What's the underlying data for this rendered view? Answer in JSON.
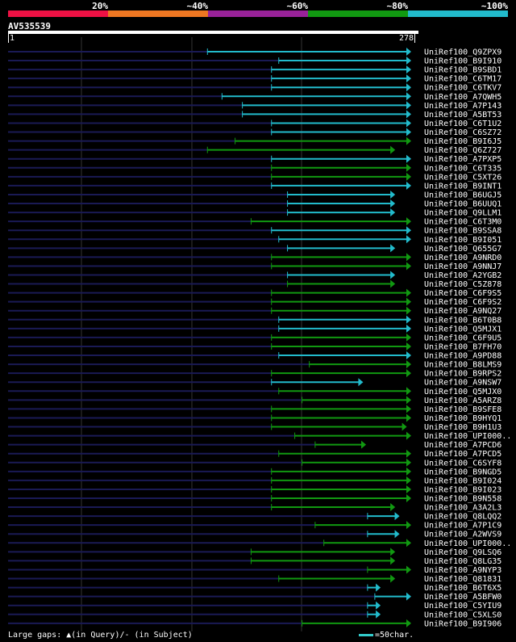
{
  "query": {
    "name": "AV535539",
    "start": "1",
    "end": "278"
  },
  "legend": [
    {
      "label": "20%",
      "color": "#ee1144"
    },
    {
      "label": "~40%",
      "color": "#ee7722"
    },
    {
      "label": "~60%",
      "color": "#992299"
    },
    {
      "label": "~80%",
      "color": "#119911"
    },
    {
      "label": "~100%",
      "color": "#22bbcc"
    }
  ],
  "footer": {
    "gaps_text": "Large gaps: ▲(in Query)/- (in Subject)",
    "scale_text": "=50char."
  },
  "chart_data": {
    "type": "alignment",
    "query_length": 278,
    "colors": {
      "green": "#119911",
      "cyan": "#22bbcc"
    },
    "hits": [
      {
        "name": "UniRef100_Q9ZPX9",
        "start": 138,
        "end": 278,
        "color": "cyan"
      },
      {
        "name": "UniRef100_B9I910",
        "start": 187,
        "end": 278,
        "color": "cyan"
      },
      {
        "name": "UniRef100_B9SBD1",
        "start": 182,
        "end": 278,
        "color": "cyan"
      },
      {
        "name": "UniRef100_C6TM17",
        "start": 182,
        "end": 278,
        "color": "cyan"
      },
      {
        "name": "UniRef100_C6TKV7",
        "start": 182,
        "end": 278,
        "color": "cyan"
      },
      {
        "name": "UniRef100_A7QWH5",
        "start": 148,
        "end": 278,
        "color": "cyan"
      },
      {
        "name": "UniRef100_A7P143",
        "start": 162,
        "end": 278,
        "color": "cyan"
      },
      {
        "name": "UniRef100_A5BT53",
        "start": 162,
        "end": 278,
        "color": "cyan"
      },
      {
        "name": "UniRef100_C6T1U2",
        "start": 182,
        "end": 278,
        "color": "cyan"
      },
      {
        "name": "UniRef100_C6SZ72",
        "start": 182,
        "end": 278,
        "color": "cyan"
      },
      {
        "name": "UniRef100_B9I6J5",
        "start": 157,
        "end": 278,
        "color": "green"
      },
      {
        "name": "UniRef100_Q6Z727",
        "start": 138,
        "end": 267,
        "color": "green"
      },
      {
        "name": "UniRef100_A7PXP5",
        "start": 182,
        "end": 278,
        "color": "cyan"
      },
      {
        "name": "UniRef100_C6T335",
        "start": 182,
        "end": 278,
        "color": "green"
      },
      {
        "name": "UniRef100_C5XT26",
        "start": 182,
        "end": 278,
        "color": "green"
      },
      {
        "name": "UniRef100_B9INT1",
        "start": 182,
        "end": 278,
        "color": "cyan"
      },
      {
        "name": "UniRef100_B6UGJ5",
        "start": 193,
        "end": 267,
        "color": "cyan"
      },
      {
        "name": "UniRef100_B6UUQ1",
        "start": 193,
        "end": 267,
        "color": "cyan"
      },
      {
        "name": "UniRef100_Q9LLM1",
        "start": 193,
        "end": 267,
        "color": "cyan"
      },
      {
        "name": "UniRef100_C6T3M0",
        "start": 168,
        "end": 278,
        "color": "green"
      },
      {
        "name": "UniRef100_B9SSA8",
        "start": 182,
        "end": 278,
        "color": "cyan"
      },
      {
        "name": "UniRef100_B9I051",
        "start": 187,
        "end": 278,
        "color": "cyan"
      },
      {
        "name": "UniRef100_Q655G7",
        "start": 193,
        "end": 267,
        "color": "cyan"
      },
      {
        "name": "UniRef100_A9NRD0",
        "start": 182,
        "end": 278,
        "color": "green"
      },
      {
        "name": "UniRef100_A9NNJ7",
        "start": 182,
        "end": 278,
        "color": "green"
      },
      {
        "name": "UniRef100_A2YGB2",
        "start": 193,
        "end": 267,
        "color": "cyan"
      },
      {
        "name": "UniRef100_C5Z878",
        "start": 193,
        "end": 267,
        "color": "green"
      },
      {
        "name": "UniRef100_C6F9S5",
        "start": 182,
        "end": 278,
        "color": "green"
      },
      {
        "name": "UniRef100_C6F9S2",
        "start": 182,
        "end": 278,
        "color": "green"
      },
      {
        "name": "UniRef100_A9NQ27",
        "start": 182,
        "end": 278,
        "color": "green"
      },
      {
        "name": "UniRef100_B6T0B8",
        "start": 187,
        "end": 278,
        "color": "cyan"
      },
      {
        "name": "UniRef100_Q5MJX1",
        "start": 187,
        "end": 278,
        "color": "cyan"
      },
      {
        "name": "UniRef100_C6F9U5",
        "start": 182,
        "end": 278,
        "color": "green"
      },
      {
        "name": "UniRef100_B7FH70",
        "start": 182,
        "end": 278,
        "color": "green"
      },
      {
        "name": "UniRef100_A9PD88",
        "start": 187,
        "end": 278,
        "color": "cyan"
      },
      {
        "name": "UniRef100_B8LMS9",
        "start": 208,
        "end": 278,
        "color": "green"
      },
      {
        "name": "UniRef100_B9RPS2",
        "start": 182,
        "end": 278,
        "color": "green"
      },
      {
        "name": "UniRef100_A9NSW7",
        "start": 182,
        "end": 245,
        "color": "cyan"
      },
      {
        "name": "UniRef100_Q5MJX0",
        "start": 187,
        "end": 278,
        "color": "green"
      },
      {
        "name": "UniRef100_A5ARZ8",
        "start": 203,
        "end": 278,
        "color": "green"
      },
      {
        "name": "UniRef100_B9SFE8",
        "start": 182,
        "end": 278,
        "color": "green"
      },
      {
        "name": "UniRef100_B9HYQ1",
        "start": 182,
        "end": 278,
        "color": "green"
      },
      {
        "name": "UniRef100_B9H1U3",
        "start": 182,
        "end": 275,
        "color": "green"
      },
      {
        "name": "UniRef100_UPI000..",
        "start": 198,
        "end": 278,
        "color": "green"
      },
      {
        "name": "UniRef100_A7PCD6",
        "start": 212,
        "end": 247,
        "color": "green"
      },
      {
        "name": "UniRef100_A7PCD5",
        "start": 187,
        "end": 278,
        "color": "green"
      },
      {
        "name": "UniRef100_C6SYF8",
        "start": 203,
        "end": 278,
        "color": "green"
      },
      {
        "name": "UniRef100_B9NGD5",
        "start": 182,
        "end": 278,
        "color": "green"
      },
      {
        "name": "UniRef100_B9I024",
        "start": 182,
        "end": 278,
        "color": "green"
      },
      {
        "name": "UniRef100_B9I023",
        "start": 182,
        "end": 278,
        "color": "green"
      },
      {
        "name": "UniRef100_B9N558",
        "start": 182,
        "end": 278,
        "color": "green"
      },
      {
        "name": "UniRef100_A3A2L3",
        "start": 182,
        "end": 267,
        "color": "green"
      },
      {
        "name": "UniRef100_Q8LQQ2",
        "start": 248,
        "end": 270,
        "color": "cyan"
      },
      {
        "name": "UniRef100_A7P1C9",
        "start": 212,
        "end": 278,
        "color": "green"
      },
      {
        "name": "UniRef100_A2WVS9",
        "start": 248,
        "end": 270,
        "color": "cyan"
      },
      {
        "name": "UniRef100_UPI000..",
        "start": 218,
        "end": 278,
        "color": "green"
      },
      {
        "name": "UniRef100_Q9LSQ6",
        "start": 168,
        "end": 267,
        "color": "green"
      },
      {
        "name": "UniRef100_Q8LG35",
        "start": 168,
        "end": 267,
        "color": "green"
      },
      {
        "name": "UniRef100_A9NYP3",
        "start": 248,
        "end": 278,
        "color": "green"
      },
      {
        "name": "UniRef100_Q81831",
        "start": 187,
        "end": 267,
        "color": "green"
      },
      {
        "name": "UniRef100_B6T6X5",
        "start": 248,
        "end": 257,
        "color": "cyan"
      },
      {
        "name": "UniRef100_A5BFW0",
        "start": 253,
        "end": 278,
        "color": "cyan"
      },
      {
        "name": "UniRef100_C5YIU9",
        "start": 248,
        "end": 257,
        "color": "cyan"
      },
      {
        "name": "UniRef100_C5XLS0",
        "start": 248,
        "end": 257,
        "color": "cyan"
      },
      {
        "name": "UniRef100_B9I906",
        "start": 203,
        "end": 278,
        "color": "green"
      }
    ]
  }
}
